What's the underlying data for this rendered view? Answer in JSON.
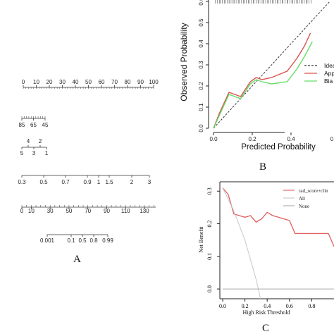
{
  "chart_data": [
    {
      "panel": "A",
      "type": "nomogram",
      "panel_label": "A",
      "scales": [
        {
          "ticks": [
            "0",
            "10",
            "20",
            "30",
            "40",
            "50",
            "60",
            "70",
            "80",
            "90",
            "100"
          ]
        },
        {
          "ticks": [
            "85",
            "65",
            "45"
          ]
        },
        {
          "ticks_upper": [
            "4",
            "2"
          ],
          "ticks_lower": [
            "5",
            "3",
            "1"
          ]
        },
        {
          "ticks": [
            "0.3",
            "0.5",
            "0.7",
            "0.9",
            "1",
            "1.5",
            "2",
            "3"
          ]
        },
        {
          "ticks": [
            "0",
            "10",
            "30",
            "50",
            "70",
            "90",
            "110",
            "130"
          ]
        },
        {
          "ticks": [
            "0.001",
            "0.1",
            "0.5",
            "0.8",
            "0.99"
          ]
        }
      ]
    },
    {
      "panel": "B",
      "type": "line",
      "panel_label": "B",
      "xlabel": "Predicted Probability",
      "ylabel": "Observed Probability",
      "xlim": [
        0,
        0.6
      ],
      "ylim": [
        0,
        0.6
      ],
      "x_ticks": [
        "0.0",
        "0.2",
        "0.4"
      ],
      "y_ticks": [
        "0.0",
        "0.1",
        "0.2",
        "0.3",
        "0.4",
        "0.5",
        "0.6"
      ],
      "x_tick_values": [
        0,
        0.2,
        0.4
      ],
      "y_tick_values": [
        0,
        0.1,
        0.2,
        0.3,
        0.4,
        0.5,
        0.6
      ],
      "legend": [
        "Idea",
        "App",
        "Bia"
      ],
      "colors": {
        "ideal": "#333333",
        "apparent": "#d9534f",
        "bias": "#66dd66"
      },
      "series": [
        {
          "name": "Idea",
          "x": [
            0,
            0.6
          ],
          "y": [
            0,
            0.6
          ]
        },
        {
          "name": "App",
          "x": [
            0.0,
            0.03,
            0.08,
            0.14,
            0.19,
            0.22,
            0.25,
            0.3,
            0.38,
            0.43,
            0.47,
            0.5
          ],
          "y": [
            0.0,
            0.07,
            0.17,
            0.15,
            0.22,
            0.24,
            0.23,
            0.24,
            0.27,
            0.33,
            0.39,
            0.45
          ]
        },
        {
          "name": "Bia",
          "x": [
            0.0,
            0.03,
            0.08,
            0.14,
            0.19,
            0.22,
            0.25,
            0.3,
            0.38,
            0.43,
            0.47,
            0.51
          ],
          "y": [
            0.0,
            0.06,
            0.16,
            0.14,
            0.21,
            0.23,
            0.22,
            0.21,
            0.22,
            0.28,
            0.34,
            0.41
          ]
        }
      ]
    },
    {
      "panel": "C",
      "type": "line",
      "panel_label": "C",
      "xlabel": "High Risk Threshold",
      "ylabel": "Net Benefit",
      "xlim": [
        0,
        1.0
      ],
      "ylim": [
        -0.03,
        0.32
      ],
      "x_ticks": [
        "0.0",
        "0.2",
        "0.4",
        "0.6",
        "0.8"
      ],
      "x_tick_values": [
        0,
        0.2,
        0.4,
        0.6,
        0.8
      ],
      "y_ticks": [
        "0.0",
        "0.1",
        "0.2",
        "0.3"
      ],
      "y_tick_values": [
        0,
        0.1,
        0.2,
        0.3
      ],
      "legend": [
        "rad_score+clin",
        "All",
        "None"
      ],
      "colors": {
        "model": "#e06060",
        "all": "#c8c8c8",
        "none": "#aaaaaa"
      },
      "series": [
        {
          "name": "rad_score+clin",
          "x": [
            0.0,
            0.05,
            0.1,
            0.15,
            0.2,
            0.25,
            0.3,
            0.35,
            0.4,
            0.45,
            0.5,
            0.55,
            0.6,
            0.65,
            0.7,
            0.75,
            0.8,
            0.85,
            0.9,
            0.95,
            1.0
          ],
          "y": [
            0.31,
            0.29,
            0.23,
            0.225,
            0.22,
            0.225,
            0.205,
            0.215,
            0.235,
            0.225,
            0.22,
            0.215,
            0.21,
            0.17,
            0.17,
            0.17,
            0.17,
            0.17,
            0.17,
            0.17,
            0.13
          ]
        },
        {
          "name": "All",
          "x": [
            0.0,
            0.1,
            0.2,
            0.3,
            0.34
          ],
          "y": [
            0.31,
            0.24,
            0.15,
            0.03,
            -0.03
          ]
        },
        {
          "name": "None",
          "x": [
            0.0,
            1.0
          ],
          "y": [
            0.0,
            0.0
          ]
        }
      ]
    }
  ]
}
